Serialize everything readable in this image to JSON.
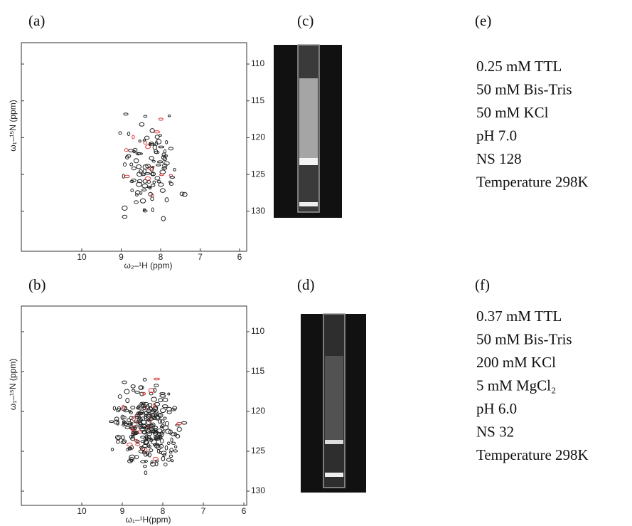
{
  "panels": {
    "a": {
      "label": "(a)",
      "x_axis_label": "ω₂–¹H (ppm)",
      "y_axis_label": "ω₁–¹⁵N (ppm)",
      "xticks": [
        10,
        9,
        8,
        7,
        6
      ],
      "yticks": [
        110,
        115,
        120,
        125,
        130
      ]
    },
    "b": {
      "label": "(b)",
      "x_axis_label": "ω₁–¹H(ppm)",
      "y_axis_label": "ω₁–¹⁵N (ppm)",
      "xticks": [
        10,
        9,
        8,
        7,
        6
      ],
      "yticks": [
        110,
        115,
        120,
        125,
        130
      ]
    },
    "c": {
      "label": "(c)"
    },
    "d": {
      "label": "(d)"
    },
    "e": {
      "label": "(e)",
      "lines": [
        "0.25 mM TTL",
        "50 mM Bis-Tris",
        "50 mM KCl",
        "pH 7.0",
        "NS 128",
        "Temperature 298K"
      ]
    },
    "f": {
      "label": "(f)",
      "lines": [
        "0.37 mM TTL",
        "50 mM Bis-Tris",
        "200 mM KCl",
        "5 mM MgCl₂",
        "pH 6.0",
        "NS 32",
        "Temperature 298K"
      ]
    }
  }
}
